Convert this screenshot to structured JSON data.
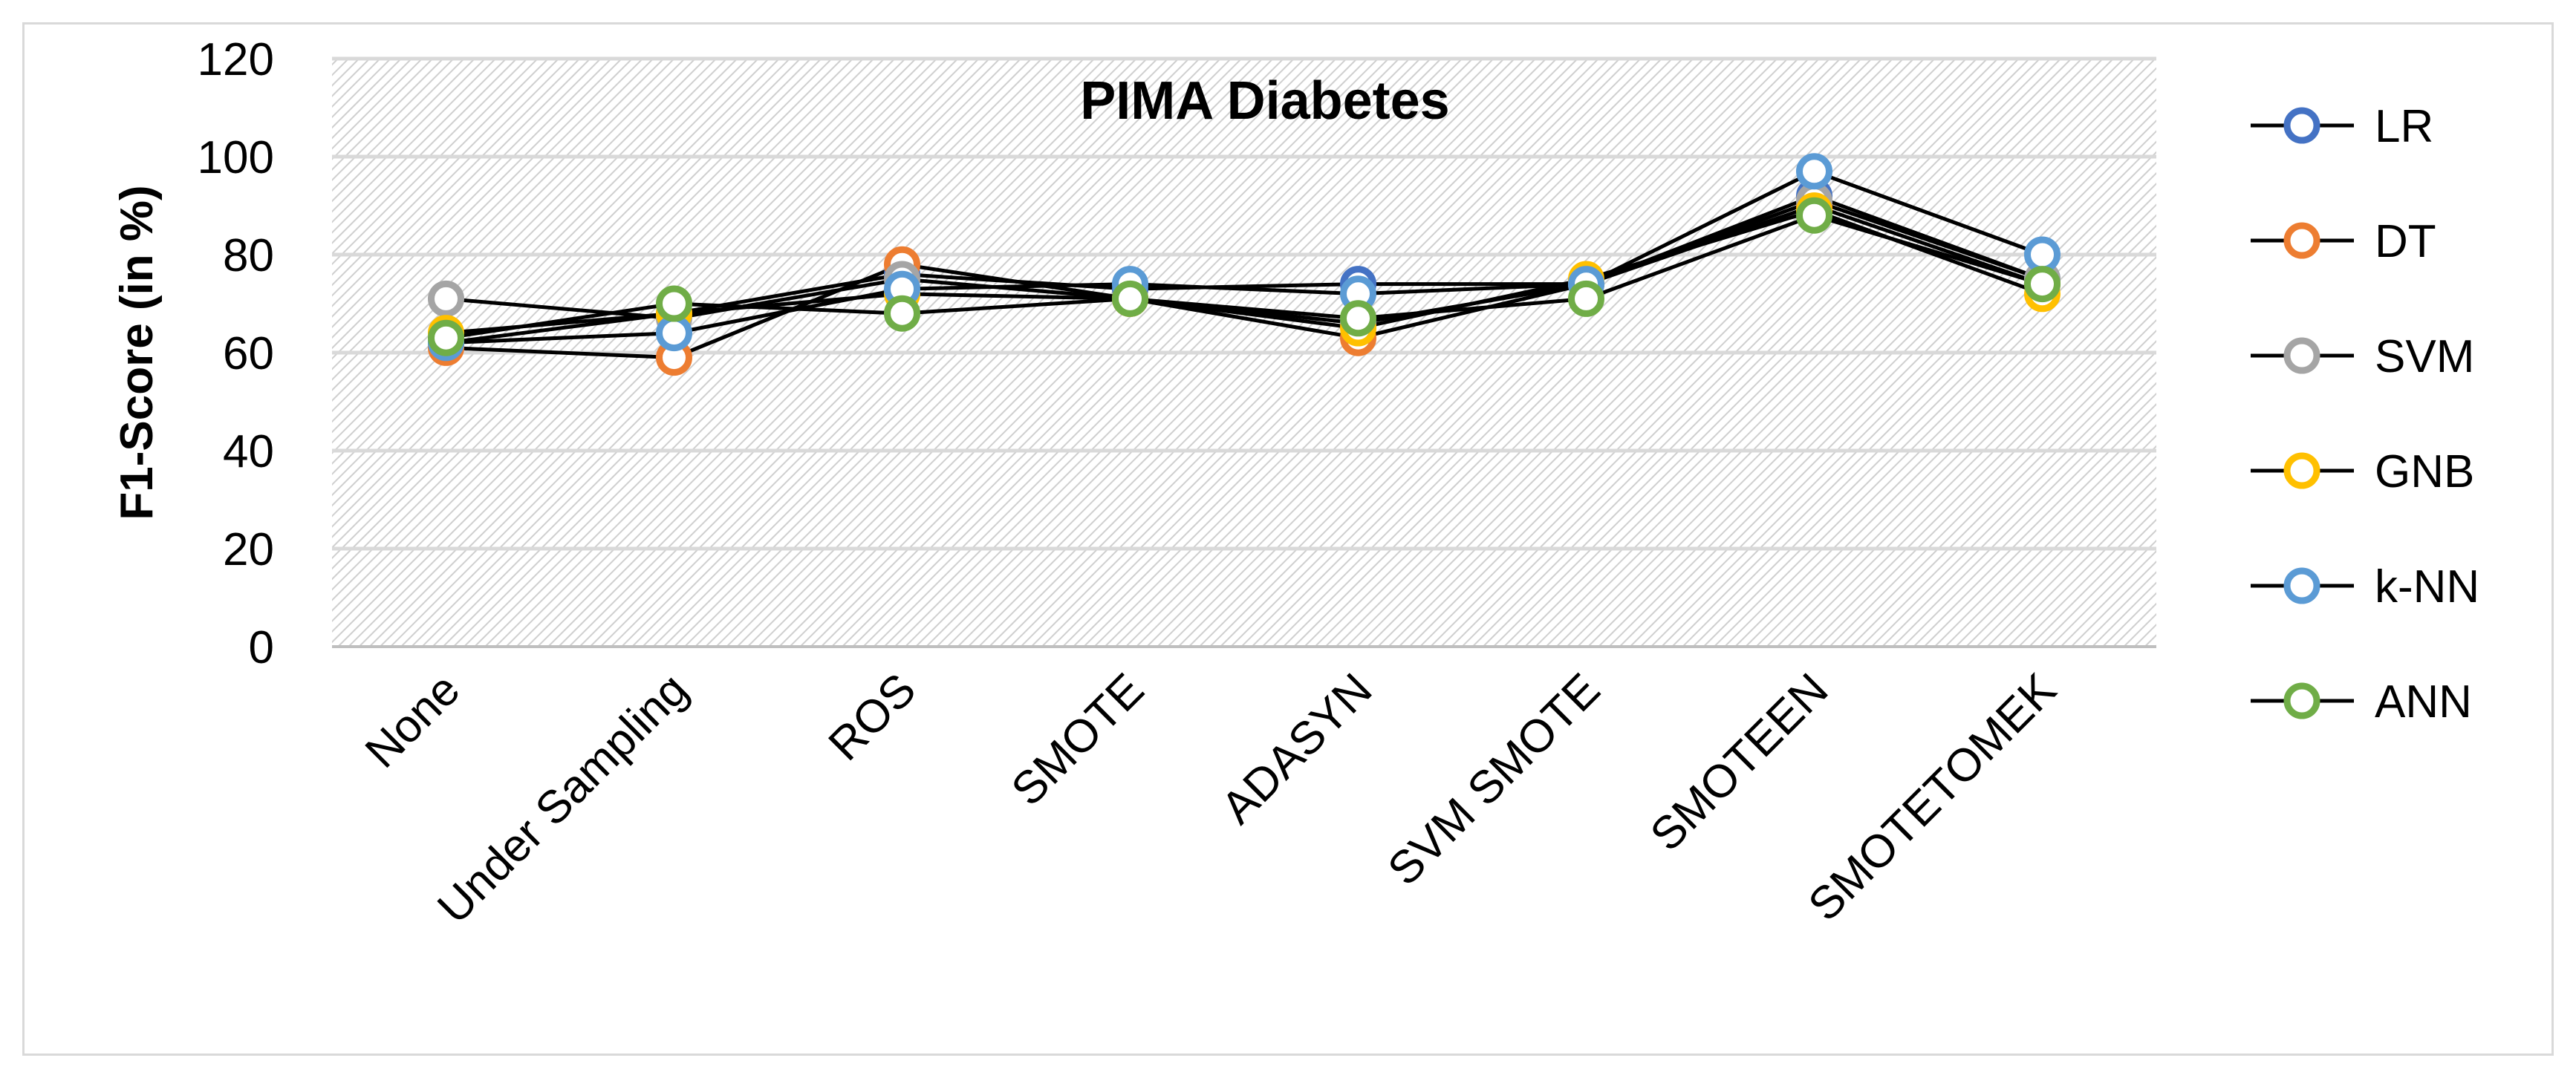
{
  "chart_data": {
    "type": "line",
    "title": "PIMA Diabetes",
    "xlabel": "",
    "ylabel": "F1-Score (in %)",
    "ylim": [
      0,
      120
    ],
    "yticks": [
      0,
      20,
      40,
      60,
      80,
      100,
      120
    ],
    "grid": true,
    "legend_position": "right",
    "categories": [
      "None",
      "Under Sampling",
      "ROS",
      "SMOTE",
      "ADASYN",
      "SVM SMOTE",
      "SMOTEEN",
      "SMOTETOMEK"
    ],
    "series": [
      {
        "name": "LR",
        "color": "#4472c4",
        "values": [
          62,
          68,
          76,
          73,
          74,
          74,
          92,
          75
        ]
      },
      {
        "name": "DT",
        "color": "#ed7d31",
        "values": [
          61,
          59,
          78,
          71,
          63,
          74,
          90,
          74
        ]
      },
      {
        "name": "SVM",
        "color": "#a5a5a5",
        "values": [
          71,
          67,
          75,
          71,
          66,
          74,
          91,
          75
        ]
      },
      {
        "name": "GNB",
        "color": "#ffc000",
        "values": [
          64,
          68,
          72,
          71,
          65,
          75,
          89,
          72
        ]
      },
      {
        "name": "k-NN",
        "color": "#5b9bd5",
        "values": [
          62,
          64,
          73,
          74,
          72,
          74,
          97,
          80
        ]
      },
      {
        "name": "ANN",
        "color": "#70ad47",
        "values": [
          63,
          70,
          68,
          71,
          67,
          71,
          88,
          74
        ]
      }
    ]
  }
}
